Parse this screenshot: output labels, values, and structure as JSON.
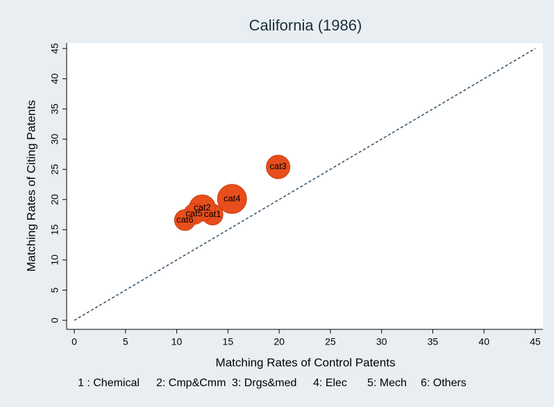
{
  "chart_data": {
    "type": "scatter",
    "title": "California (1986)",
    "xlabel": "Matching Rates of Control Patents",
    "ylabel": "Matching Rates of Citing Patents",
    "x": [
      13.5,
      12.5,
      19.9,
      15.4,
      11.7,
      10.8
    ],
    "series": [
      {
        "name": "cat",
        "color": "#e84e1b",
        "values": [
          17.5,
          18.6,
          25.4,
          20.1,
          17.6,
          16.6
        ],
        "sizes": [
          15,
          19,
          17,
          21,
          15,
          15
        ],
        "labels": [
          "cat1",
          "cat2",
          "cat3",
          "cat4",
          "cat5",
          "cat6"
        ]
      }
    ],
    "xlim": [
      0,
      45
    ],
    "ylim": [
      0,
      45
    ],
    "xticks": [
      0,
      5,
      10,
      15,
      20,
      25,
      30,
      35,
      40,
      45
    ],
    "yticks": [
      0,
      5,
      10,
      15,
      20,
      25,
      30,
      35,
      40,
      45
    ],
    "diagonal": true,
    "note": [
      "1 : Chemical",
      "2: Cmp&Cmm",
      "3: Drgs&med",
      "4: Elec",
      "5: Mech",
      "6: Others"
    ]
  }
}
